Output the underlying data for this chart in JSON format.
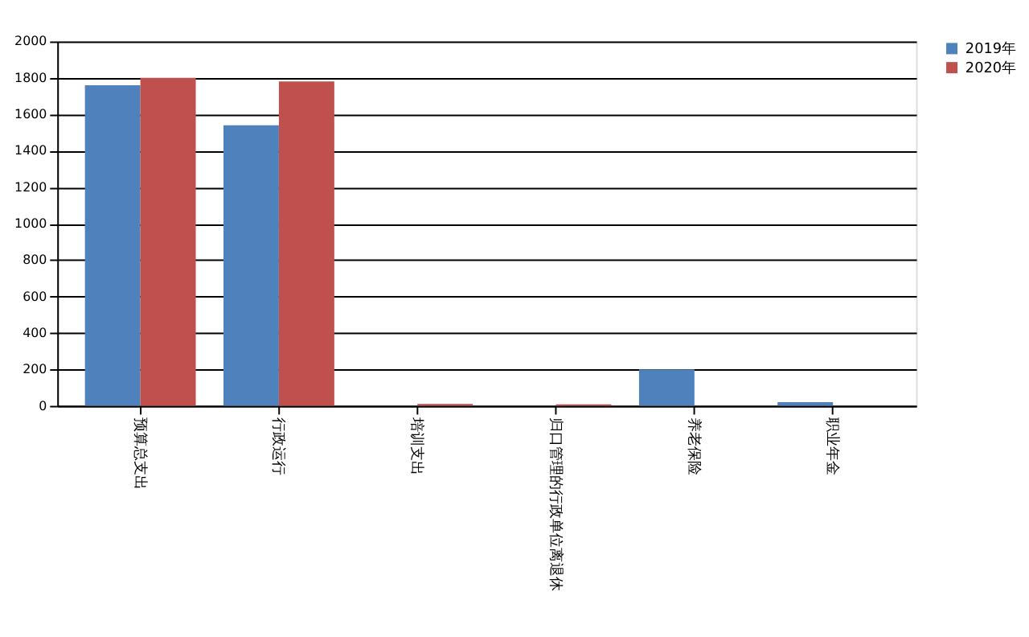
{
  "chart_data": {
    "type": "bar",
    "categories": [
      "预算总支出",
      "行政运行",
      "培训支出",
      "归口管理的行政单位离退休",
      "养老保险",
      "职业年金"
    ],
    "series": [
      {
        "name": "2019年",
        "color": "#4f81bd",
        "values": [
          1760,
          1540,
          0,
          0,
          200,
          20
        ]
      },
      {
        "name": "2020年",
        "color": "#c0504d",
        "values": [
          1800,
          1780,
          10,
          8,
          0,
          0
        ]
      }
    ],
    "ylim": [
      0,
      2000
    ],
    "yticks": [
      0,
      200,
      400,
      600,
      800,
      1000,
      1200,
      1400,
      1600,
      1800,
      2000
    ],
    "grid": "y",
    "legend": "right"
  }
}
